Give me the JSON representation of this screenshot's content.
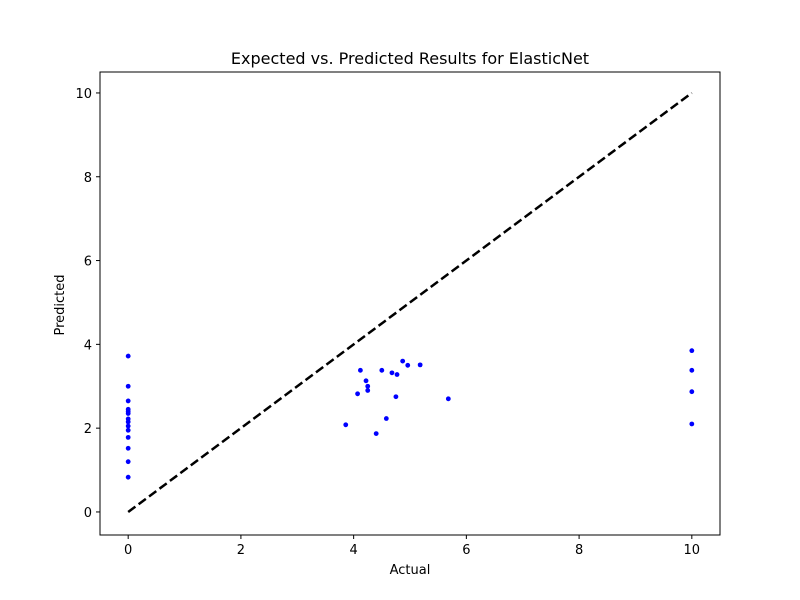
{
  "chart_data": {
    "type": "scatter",
    "title": "Expected vs. Predicted Results for ElasticNet",
    "xlabel": "Actual",
    "ylabel": "Predicted",
    "xlim": [
      -0.5,
      10.5
    ],
    "ylim": [
      -0.55,
      10.5
    ],
    "xticks": [
      0,
      2,
      4,
      6,
      8,
      10
    ],
    "yticks": [
      0,
      2,
      4,
      6,
      8,
      10
    ],
    "grid": false,
    "point_color": "#0000ff",
    "line_color": "#000000",
    "reference_line": {
      "x": [
        0,
        10
      ],
      "y": [
        0,
        10
      ],
      "style": "dashed"
    },
    "points": [
      {
        "x": 0,
        "y": 3.72
      },
      {
        "x": 0,
        "y": 3.0
      },
      {
        "x": 0,
        "y": 2.65
      },
      {
        "x": 0,
        "y": 2.45
      },
      {
        "x": 0,
        "y": 2.4
      },
      {
        "x": 0,
        "y": 2.35
      },
      {
        "x": 0,
        "y": 2.22
      },
      {
        "x": 0,
        "y": 2.15
      },
      {
        "x": 0,
        "y": 2.05
      },
      {
        "x": 0,
        "y": 1.95
      },
      {
        "x": 0,
        "y": 1.78
      },
      {
        "x": 0,
        "y": 1.52
      },
      {
        "x": 0,
        "y": 1.2
      },
      {
        "x": 0,
        "y": 0.83
      },
      {
        "x": 3.86,
        "y": 2.08
      },
      {
        "x": 4.07,
        "y": 2.82
      },
      {
        "x": 4.12,
        "y": 3.38
      },
      {
        "x": 4.22,
        "y": 3.13
      },
      {
        "x": 4.25,
        "y": 3.0
      },
      {
        "x": 4.25,
        "y": 2.9
      },
      {
        "x": 4.4,
        "y": 1.87
      },
      {
        "x": 4.5,
        "y": 3.38
      },
      {
        "x": 4.58,
        "y": 2.23
      },
      {
        "x": 4.68,
        "y": 3.32
      },
      {
        "x": 4.75,
        "y": 2.75
      },
      {
        "x": 4.77,
        "y": 3.28
      },
      {
        "x": 4.87,
        "y": 3.6
      },
      {
        "x": 4.96,
        "y": 3.5
      },
      {
        "x": 5.18,
        "y": 3.51
      },
      {
        "x": 5.68,
        "y": 2.7
      },
      {
        "x": 10,
        "y": 3.85
      },
      {
        "x": 10,
        "y": 3.38
      },
      {
        "x": 10,
        "y": 2.87
      },
      {
        "x": 10,
        "y": 2.1
      }
    ]
  }
}
